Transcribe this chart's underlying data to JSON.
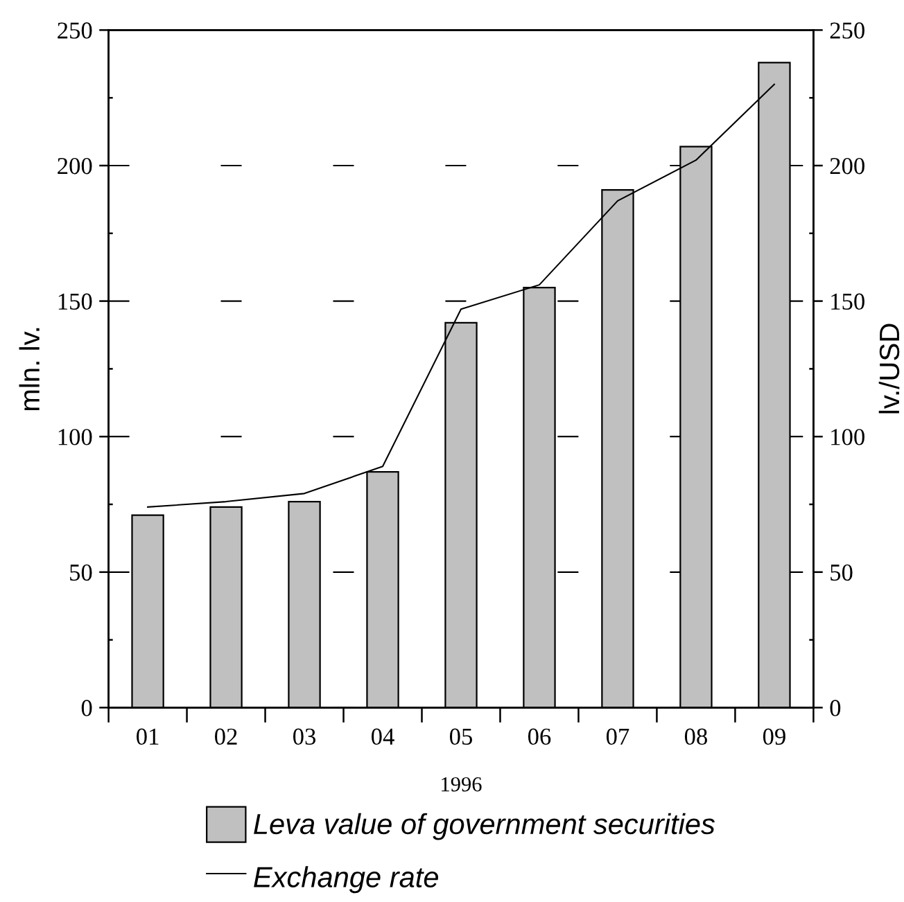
{
  "chart_data": {
    "type": "bar",
    "xlabel": "1996",
    "ylabel": "mln. lv.",
    "y2label": "lv./USD",
    "categories": [
      "01",
      "02",
      "03",
      "04",
      "05",
      "06",
      "07",
      "08",
      "09"
    ],
    "series": [
      {
        "name": "Leva value of government securities",
        "color": "#c0c0c0",
        "values": [
          71,
          74,
          76,
          87,
          142,
          155,
          191,
          207,
          238
        ]
      },
      {
        "name": "Exchange rate",
        "type": "line",
        "axis": "y2",
        "color": "#000000",
        "values": [
          74,
          76,
          79,
          89,
          147,
          156,
          187,
          202,
          230
        ]
      }
    ],
    "ylim": [
      0,
      250
    ],
    "yticks": [
      0,
      {
        "value": 25,
        "label": null
      },
      50,
      {
        "value": 75,
        "label": null
      },
      100,
      {
        "value": 125,
        "label": null
      },
      150,
      {
        "value": 175,
        "label": null
      },
      200,
      {
        "value": 225,
        "label": null
      },
      250
    ],
    "y2lim": [
      0,
      250
    ],
    "y2ticks": [
      0,
      {
        "value": 25,
        "label": null
      },
      50,
      {
        "value": 75,
        "label": null
      },
      100,
      {
        "value": 125,
        "label": null
      },
      150,
      {
        "value": 175,
        "label": null
      },
      200,
      {
        "value": 225,
        "label": null
      },
      250
    ],
    "grid": "y",
    "legend": "bottom",
    "line_style": "solid"
  }
}
